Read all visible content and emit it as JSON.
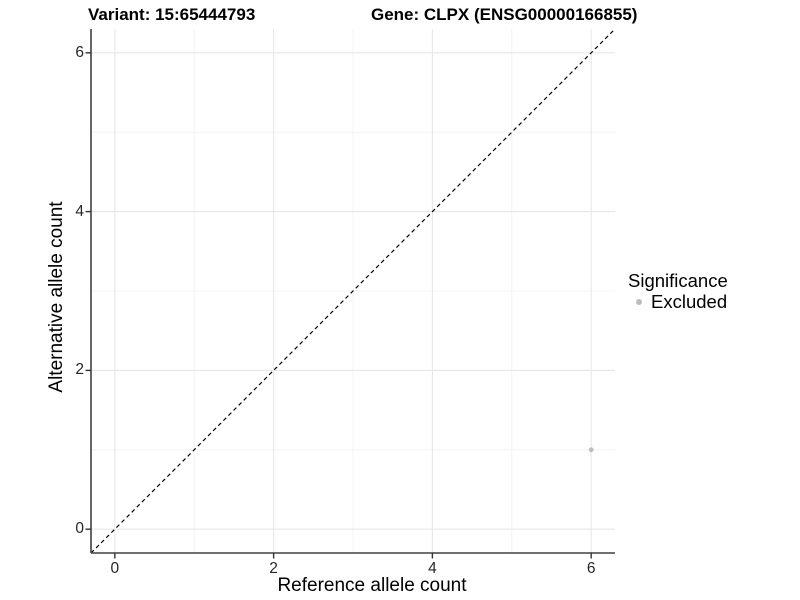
{
  "header": {
    "title_left": "Variant: 15:65444793",
    "title_right": "Gene: CLPX (ENSG00000166855)"
  },
  "legend": {
    "title": "Significance",
    "items": [
      {
        "label": "Excluded",
        "color": "#bdbdbd"
      }
    ]
  },
  "chart_data": {
    "type": "scatter",
    "title_left": "Variant: 15:65444793",
    "title_right": "Gene: CLPX (ENSG00000166855)",
    "xlabel": "Reference allele count",
    "ylabel": "Alternative allele count",
    "xlim": [
      -0.3,
      6.3
    ],
    "ylim": [
      -0.3,
      6.3
    ],
    "x_ticks": [
      0,
      2,
      4,
      6
    ],
    "y_ticks": [
      0,
      2,
      4,
      6
    ],
    "x_minor_ticks": [
      1,
      3,
      5
    ],
    "y_minor_ticks": [
      1,
      3,
      5
    ],
    "grid": true,
    "legend_position": "right",
    "series": [
      {
        "name": "Excluded",
        "color": "#bdbdbd",
        "points": [
          {
            "x": 6,
            "y": 1
          }
        ]
      }
    ],
    "reference_line": {
      "type": "abline",
      "slope": 1,
      "intercept": 0,
      "style": "dashed",
      "color": "#000000"
    },
    "colors": {
      "grid_major": "#e7e7e7",
      "grid_minor": "#f1f1f1",
      "axis_line": "#404040",
      "tick_mark": "#333333"
    }
  }
}
